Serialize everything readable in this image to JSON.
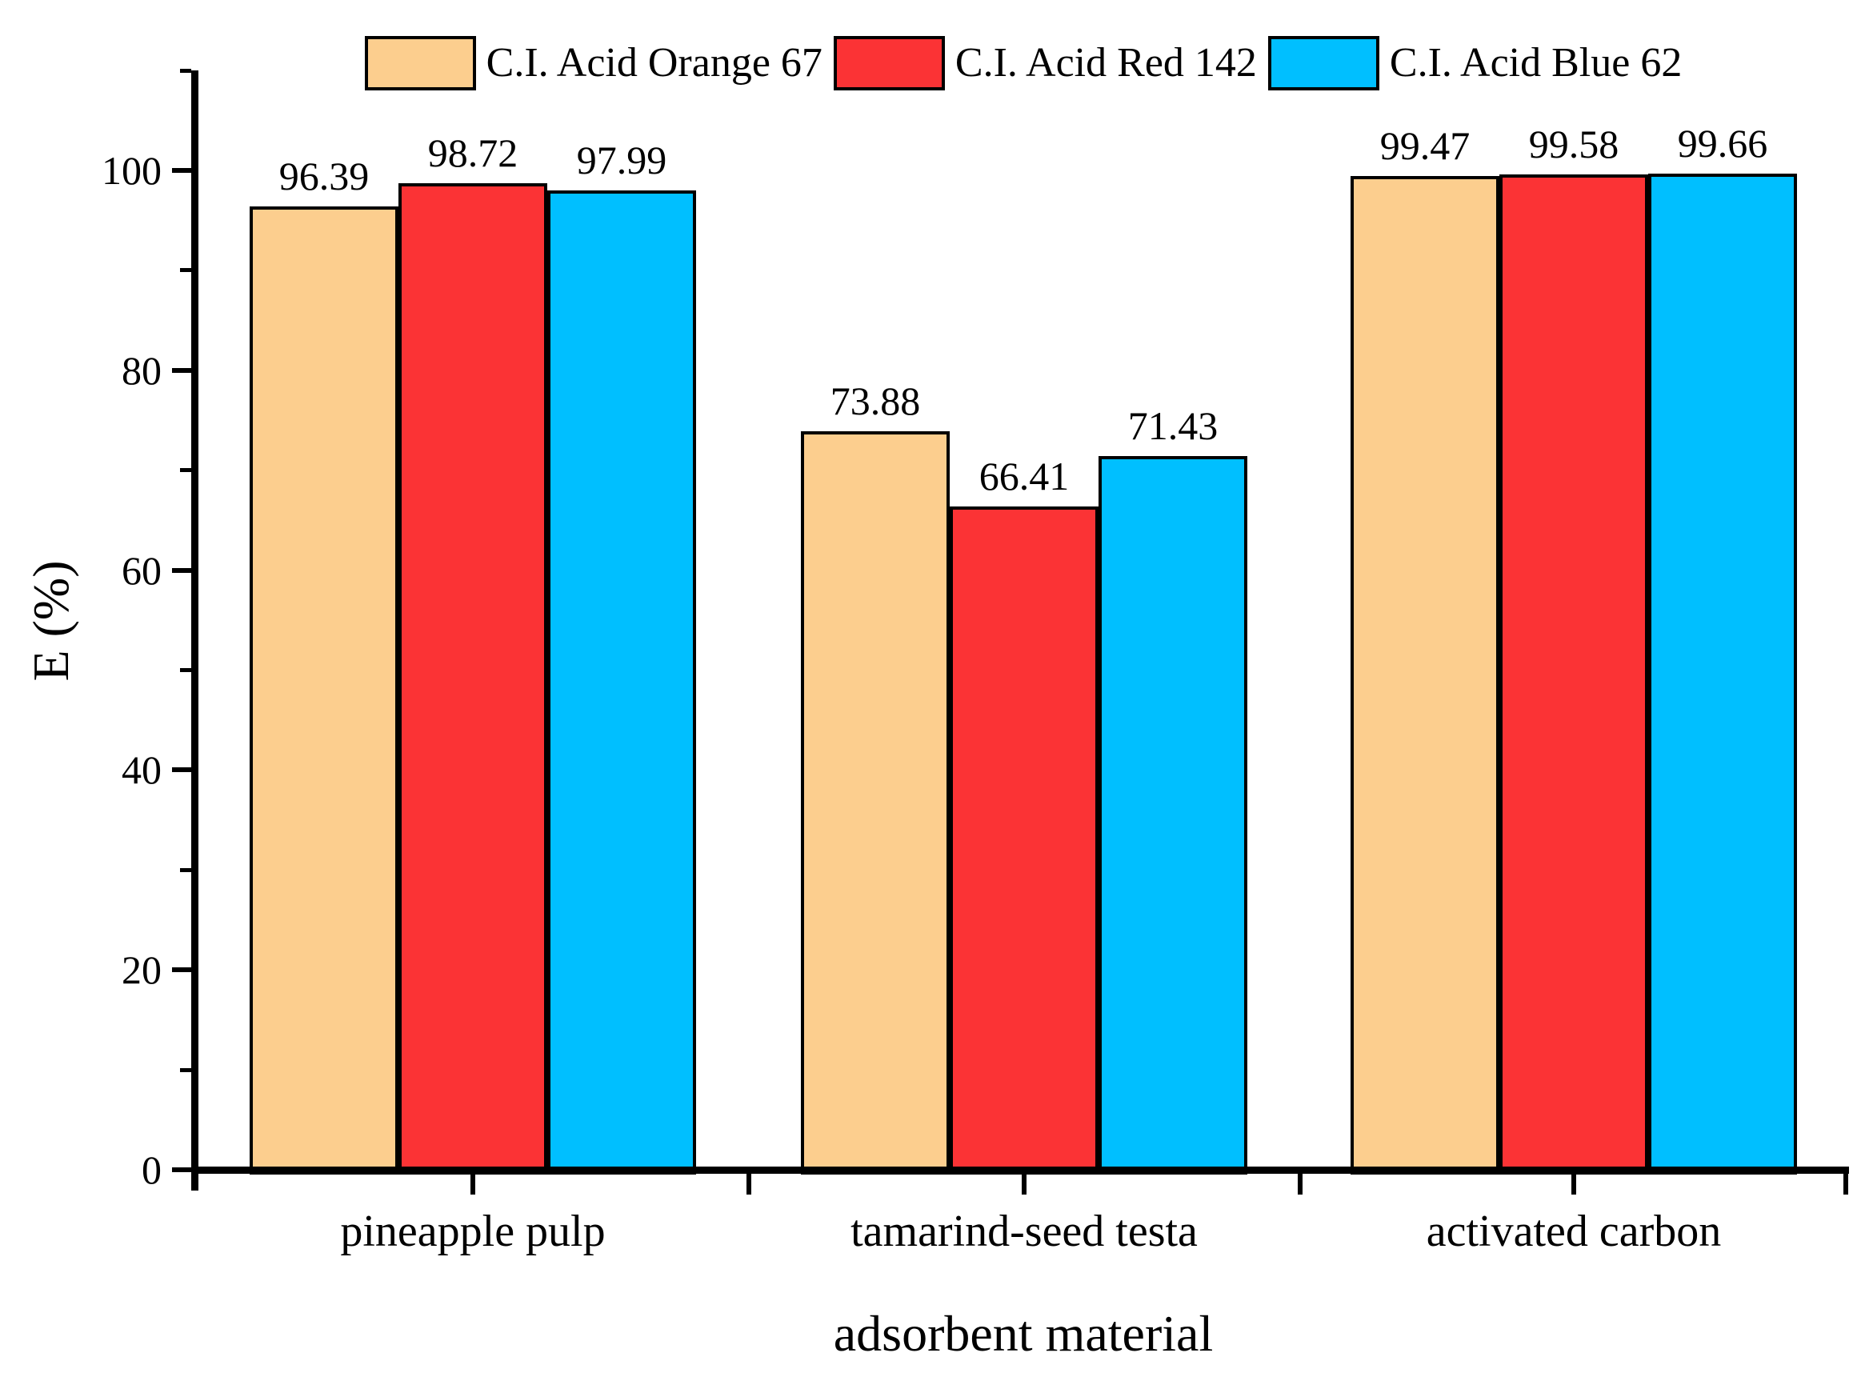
{
  "chart_data": {
    "type": "bar",
    "title": "",
    "xlabel": "adsorbent material",
    "ylabel": "E (%)",
    "categories": [
      "pineapple pulp",
      "tamarind-seed testa",
      "activated carbon"
    ],
    "series": [
      {
        "name": "C.I. Acid Orange 67",
        "color": "#FCCE8E",
        "values": [
          96.39,
          73.88,
          99.47
        ]
      },
      {
        "name": "C.I. Acid Red 142",
        "color": "#FB3335",
        "values": [
          98.72,
          66.41,
          99.58
        ]
      },
      {
        "name": "C.I. Acid Blue 62",
        "color": "#00BFFF",
        "values": [
          97.99,
          71.43,
          99.66
        ]
      }
    ],
    "value_labels": [
      [
        "96.39",
        "73.88",
        "99.47"
      ],
      [
        "98.72",
        "66.41",
        "99.58"
      ],
      [
        "97.99",
        "71.43",
        "99.66"
      ]
    ],
    "ylim": [
      0,
      110
    ],
    "yticks_major": [
      0,
      20,
      40,
      60,
      80,
      100
    ],
    "yticks_minor": [
      10,
      30,
      50,
      70,
      90,
      110
    ],
    "grid": false,
    "legend_position": "top",
    "bar_edge_color": "#000000",
    "axis_color": "#000000",
    "background_color": "#ffffff",
    "show_value_labels": true
  }
}
